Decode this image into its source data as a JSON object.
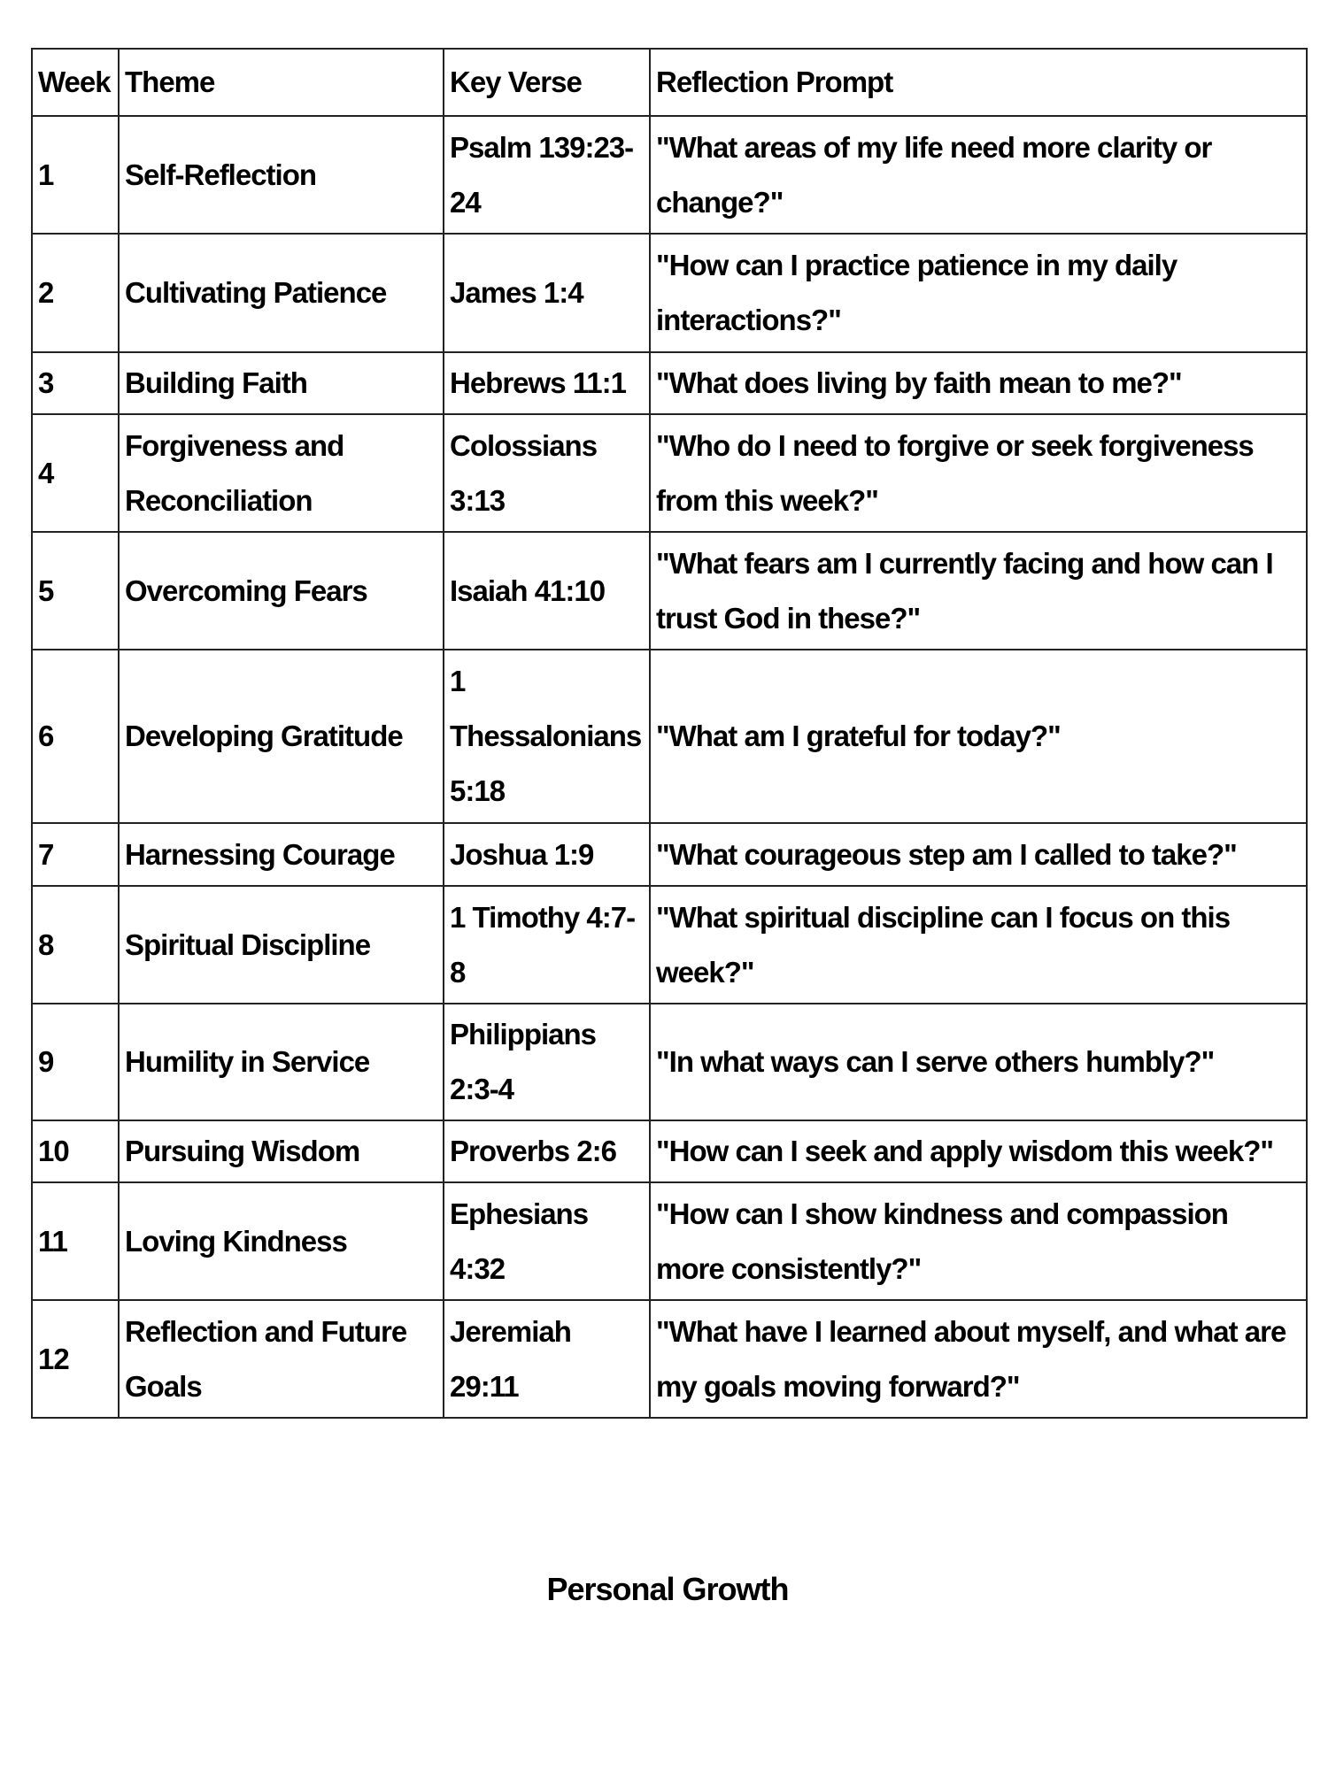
{
  "headers": [
    "Week",
    "Theme",
    "Key Verse",
    "Reflection Prompt"
  ],
  "rows": [
    {
      "week": "1",
      "theme": "Self-Reflection",
      "verse": "Psalm 139:23-24",
      "prompt": "\"What areas of my life need more clarity or change?\""
    },
    {
      "week": "2",
      "theme": "Cultivating Patience",
      "verse": "James 1:4",
      "prompt": "\"How can I practice patience in my daily interactions?\""
    },
    {
      "week": "3",
      "theme": "Building Faith",
      "verse": "Hebrews 11:1",
      "prompt": "\"What does living by faith mean to me?\""
    },
    {
      "week": "4",
      "theme": "Forgiveness and Reconciliation",
      "verse": "Colossians 3:13",
      "prompt": "\"Who do I need to forgive or seek forgiveness from this week?\""
    },
    {
      "week": "5",
      "theme": "Overcoming Fears",
      "verse": "Isaiah 41:10",
      "prompt": "\"What fears am I currently facing and how can I trust God in these?\""
    },
    {
      "week": "6",
      "theme": "Developing Gratitude",
      "verse": "1 Thessalonians 5:18",
      "prompt": "\"What am I grateful for today?\""
    },
    {
      "week": "7",
      "theme": "Harnessing Courage",
      "verse": "Joshua 1:9",
      "prompt": "\"What courageous step am I called to take?\""
    },
    {
      "week": "8",
      "theme": "Spiritual Discipline",
      "verse": "1 Timothy 4:7-8",
      "prompt": "\"What spiritual discipline can I focus on this week?\""
    },
    {
      "week": "9",
      "theme": "Humility in Service",
      "verse": "Philippians 2:3-4",
      "prompt": "\"In what ways can I serve others humbly?\""
    },
    {
      "week": "10",
      "theme": "Pursuing Wisdom",
      "verse": "Proverbs 2:6",
      "prompt": "\"How can I seek and apply wisdom this week?\""
    },
    {
      "week": "11",
      "theme": "Loving Kindness",
      "verse": "Ephesians 4:32",
      "prompt": "\"How can I show kindness and compassion more consistently?\""
    },
    {
      "week": "12",
      "theme": "Reflection and Future Goals",
      "verse": "Jeremiah 29:11",
      "prompt": "\"What have I learned about myself, and what are my goals moving forward?\""
    }
  ],
  "footer_title": "Personal Growth"
}
